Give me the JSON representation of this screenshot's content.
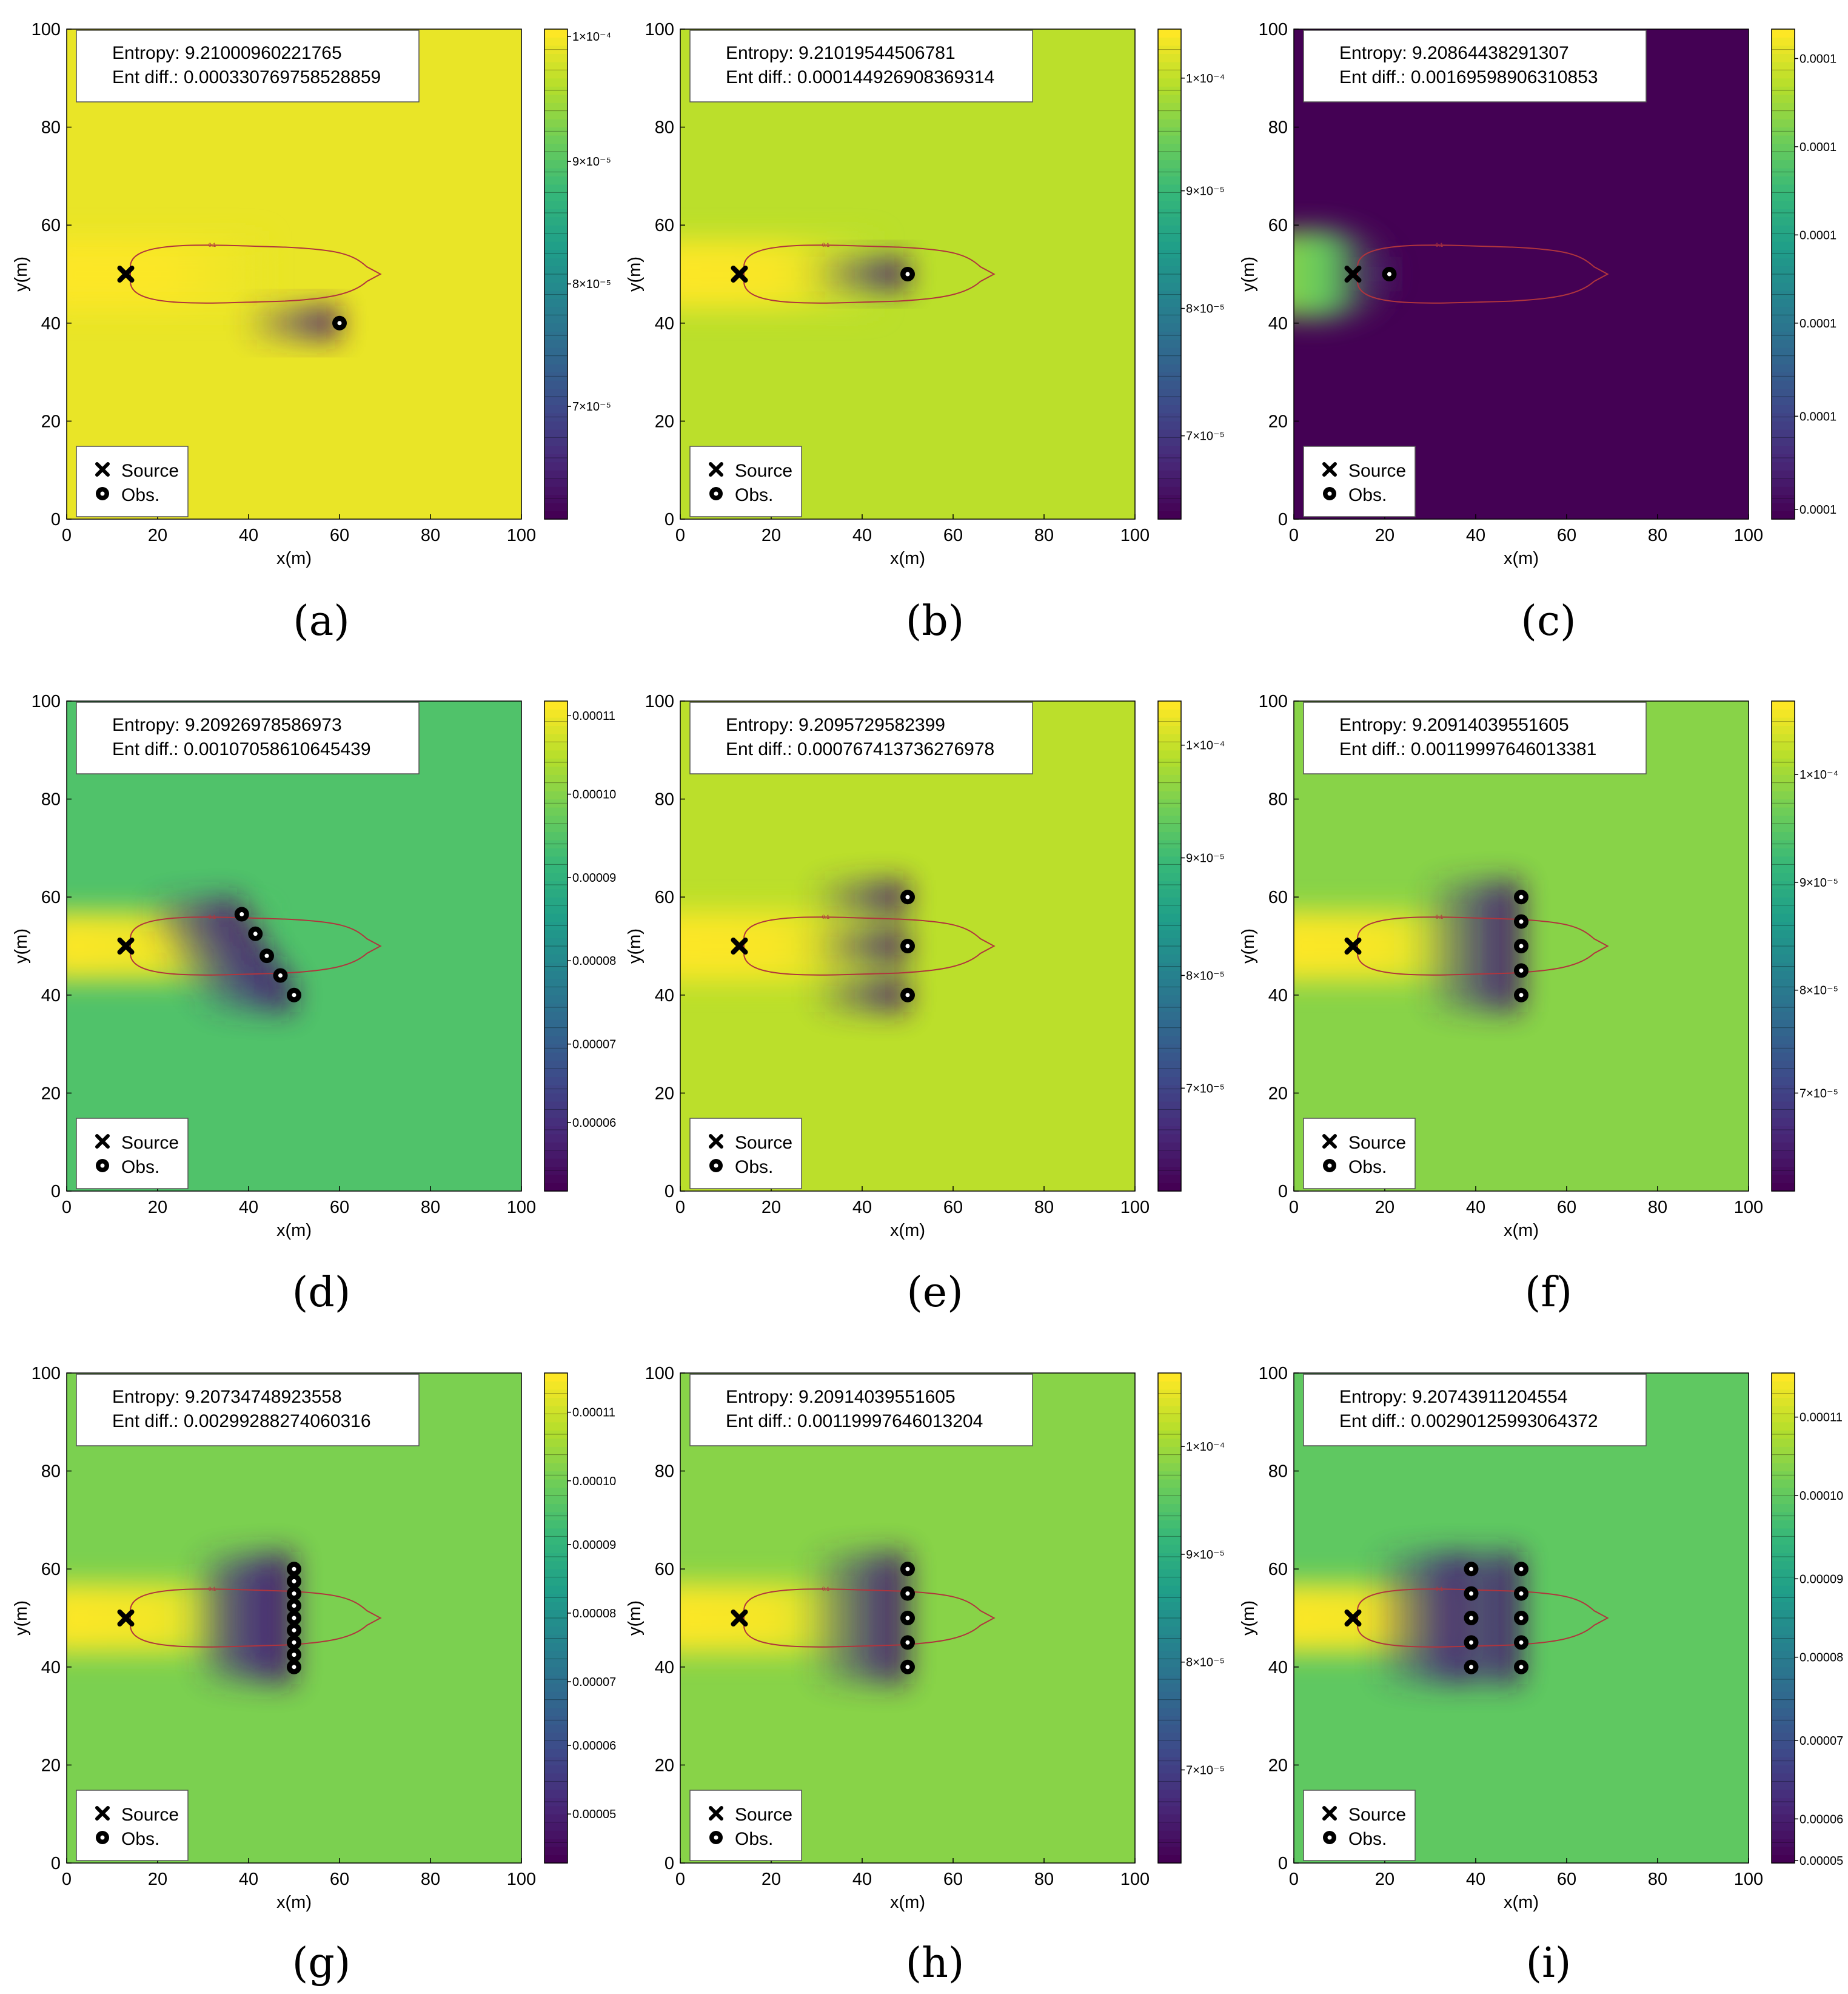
{
  "figure": {
    "captions": [
      "(a)",
      "(b)",
      "(c)",
      "(d)",
      "(e)",
      "(f)",
      "(g)",
      "(h)",
      "(i)"
    ]
  },
  "chart_data": [
    {
      "panel": "(a)",
      "type": "heatmap",
      "xlabel": "x(m)",
      "ylabel": "y(m)",
      "xlim": [
        0,
        100
      ],
      "ylim": [
        0,
        100
      ],
      "x_ticks": [
        "0",
        "20",
        "40",
        "60",
        "80",
        "100"
      ],
      "y_ticks": [
        "0",
        "20",
        "40",
        "60",
        "80",
        "100"
      ],
      "info_lines": [
        "Entropy: 9.21000960221765",
        "Ent diff.: 0.000330769758528859"
      ],
      "legend": [
        "Source",
        "Obs."
      ],
      "legend_position": "bottom-left",
      "source": [
        13,
        50
      ],
      "observations": [
        [
          60,
          40
        ]
      ],
      "background_level": 0.97,
      "source_level": 1.0,
      "contour_label": "0.1",
      "colorbar": {
        "min_level": 0.0,
        "max_level": 1.0,
        "ticks": [
          {
            "label": "1×10⁻⁴",
            "level": 0.985
          },
          {
            "label": "9×10⁻⁵",
            "level": 0.73
          },
          {
            "label": "8×10⁻⁵",
            "level": 0.48
          },
          {
            "label": "7×10⁻⁵",
            "level": 0.23
          }
        ]
      }
    },
    {
      "panel": "(b)",
      "type": "heatmap",
      "xlabel": "x(m)",
      "ylabel": "y(m)",
      "xlim": [
        0,
        100
      ],
      "ylim": [
        0,
        100
      ],
      "x_ticks": [
        "0",
        "20",
        "40",
        "60",
        "80",
        "100"
      ],
      "y_ticks": [
        "0",
        "20",
        "40",
        "60",
        "80",
        "100"
      ],
      "info_lines": [
        "Entropy: 9.21019544506781",
        "Ent diff.: 0.000144926908369314"
      ],
      "legend": [
        "Source",
        "Obs."
      ],
      "legend_position": "bottom-left",
      "source": [
        13,
        50
      ],
      "observations": [
        [
          50,
          50
        ]
      ],
      "background_level": 0.9,
      "source_level": 1.0,
      "contour_label": "0.1",
      "colorbar": {
        "min_level": 0.0,
        "max_level": 1.0,
        "ticks": [
          {
            "label": "1×10⁻⁴",
            "level": 0.9
          },
          {
            "label": "9×10⁻⁵",
            "level": 0.67
          },
          {
            "label": "8×10⁻⁵",
            "level": 0.43
          },
          {
            "label": "7×10⁻⁵",
            "level": 0.17
          }
        ]
      }
    },
    {
      "panel": "(c)",
      "type": "heatmap",
      "xlabel": "x(m)",
      "ylabel": "y(m)",
      "xlim": [
        0,
        100
      ],
      "ylim": [
        0,
        100
      ],
      "x_ticks": [
        "0",
        "20",
        "40",
        "60",
        "80",
        "100"
      ],
      "y_ticks": [
        "0",
        "20",
        "40",
        "60",
        "80",
        "100"
      ],
      "info_lines": [
        "Entropy: 9.20864438291307",
        "Ent diff.: 0.00169598906310853"
      ],
      "legend": [
        "Source",
        "Obs."
      ],
      "legend_position": "bottom-left",
      "source": [
        13,
        50
      ],
      "observations": [
        [
          21,
          50
        ]
      ],
      "background_level": 0.0,
      "source_level": 1.0,
      "inverted_plume": true,
      "contour_label": "0.1",
      "colorbar": {
        "min_level": 0.0,
        "max_level": 1.0,
        "ticks": [
          {
            "label": "0.0001",
            "level": 0.94
          },
          {
            "label": "0.0001",
            "level": 0.76
          },
          {
            "label": "0.0001",
            "level": 0.58
          },
          {
            "label": "0.0001",
            "level": 0.4
          },
          {
            "label": "0.0001",
            "level": 0.21
          },
          {
            "label": "0.0001",
            "level": 0.02
          }
        ]
      }
    },
    {
      "panel": "(d)",
      "type": "heatmap",
      "xlabel": "x(m)",
      "ylabel": "y(m)",
      "xlim": [
        0,
        100
      ],
      "ylim": [
        0,
        100
      ],
      "x_ticks": [
        "0",
        "20",
        "40",
        "60",
        "80",
        "100"
      ],
      "y_ticks": [
        "0",
        "20",
        "40",
        "60",
        "80",
        "100"
      ],
      "info_lines": [
        "Entropy: 9.20926978586973",
        "Ent diff.: 0.00107058610645439"
      ],
      "legend": [
        "Source",
        "Obs."
      ],
      "legend_position": "bottom-left",
      "source": [
        13,
        50
      ],
      "observations": [
        [
          38.5,
          56.5
        ],
        [
          41.5,
          52.5
        ],
        [
          44,
          48
        ],
        [
          47,
          44
        ],
        [
          50,
          40
        ]
      ],
      "background_level": 0.72,
      "source_level": 1.0,
      "contour_label": "0.1",
      "colorbar": {
        "min_level": 0.0,
        "max_level": 1.0,
        "ticks": [
          {
            "label": "0.00011",
            "level": 0.97
          },
          {
            "label": "0.00010",
            "level": 0.81
          },
          {
            "label": "0.00009",
            "level": 0.64
          },
          {
            "label": "0.00008",
            "level": 0.47
          },
          {
            "label": "0.00007",
            "level": 0.3
          },
          {
            "label": "0.00006",
            "level": 0.14
          }
        ]
      }
    },
    {
      "panel": "(e)",
      "type": "heatmap",
      "xlabel": "x(m)",
      "ylabel": "y(m)",
      "xlim": [
        0,
        100
      ],
      "ylim": [
        0,
        100
      ],
      "x_ticks": [
        "0",
        "20",
        "40",
        "60",
        "80",
        "100"
      ],
      "y_ticks": [
        "0",
        "20",
        "40",
        "60",
        "80",
        "100"
      ],
      "info_lines": [
        "Entropy: 9.2095729582399",
        "Ent diff.: 0.000767413736276978"
      ],
      "legend": [
        "Source",
        "Obs."
      ],
      "legend_position": "bottom-left",
      "source": [
        13,
        50
      ],
      "observations": [
        [
          50,
          60
        ],
        [
          50,
          50
        ],
        [
          50,
          40
        ]
      ],
      "background_level": 0.9,
      "source_level": 1.0,
      "contour_label": "0.1",
      "colorbar": {
        "min_level": 0.0,
        "max_level": 1.0,
        "ticks": [
          {
            "label": "1×10⁻⁴",
            "level": 0.91
          },
          {
            "label": "9×10⁻⁵",
            "level": 0.68
          },
          {
            "label": "8×10⁻⁵",
            "level": 0.44
          },
          {
            "label": "7×10⁻⁵",
            "level": 0.21
          }
        ]
      }
    },
    {
      "panel": "(f)",
      "type": "heatmap",
      "xlabel": "x(m)",
      "ylabel": "y(m)",
      "xlim": [
        0,
        100
      ],
      "ylim": [
        0,
        100
      ],
      "x_ticks": [
        "0",
        "20",
        "40",
        "60",
        "80",
        "100"
      ],
      "y_ticks": [
        "0",
        "20",
        "40",
        "60",
        "80",
        "100"
      ],
      "info_lines": [
        "Entropy: 9.20914039551605",
        "Ent diff.: 0.00119997646013381"
      ],
      "legend": [
        "Source",
        "Obs."
      ],
      "legend_position": "bottom-left",
      "source": [
        13,
        50
      ],
      "observations": [
        [
          50,
          60
        ],
        [
          50,
          55
        ],
        [
          50,
          50
        ],
        [
          50,
          45
        ],
        [
          50,
          40
        ]
      ],
      "background_level": 0.82,
      "source_level": 1.0,
      "contour_label": "0.1",
      "colorbar": {
        "min_level": 0.0,
        "max_level": 1.0,
        "ticks": [
          {
            "label": "1×10⁻⁴",
            "level": 0.85
          },
          {
            "label": "9×10⁻⁵",
            "level": 0.63
          },
          {
            "label": "8×10⁻⁵",
            "level": 0.41
          },
          {
            "label": "7×10⁻⁵",
            "level": 0.2
          }
        ]
      }
    },
    {
      "panel": "(g)",
      "type": "heatmap",
      "xlabel": "x(m)",
      "ylabel": "y(m)",
      "xlim": [
        0,
        100
      ],
      "ylim": [
        0,
        100
      ],
      "x_ticks": [
        "0",
        "20",
        "40",
        "60",
        "80",
        "100"
      ],
      "y_ticks": [
        "0",
        "20",
        "40",
        "60",
        "80",
        "100"
      ],
      "info_lines": [
        "Entropy: 9.20734748923558",
        "Ent diff.: 0.00299288274060316"
      ],
      "legend": [
        "Source",
        "Obs."
      ],
      "legend_position": "bottom-left",
      "source": [
        13,
        50
      ],
      "observations": [
        [
          50,
          60
        ],
        [
          50,
          57.5
        ],
        [
          50,
          55
        ],
        [
          50,
          52.5
        ],
        [
          50,
          50
        ],
        [
          50,
          47.5
        ],
        [
          50,
          45
        ],
        [
          50,
          42.5
        ],
        [
          50,
          40
        ]
      ],
      "background_level": 0.8,
      "source_level": 1.0,
      "contour_label": "0.1",
      "colorbar": {
        "min_level": 0.0,
        "max_level": 1.0,
        "ticks": [
          {
            "label": "0.00011",
            "level": 0.92
          },
          {
            "label": "0.00010",
            "level": 0.78
          },
          {
            "label": "0.00009",
            "level": 0.65
          },
          {
            "label": "0.00008",
            "level": 0.51
          },
          {
            "label": "0.00007",
            "level": 0.37
          },
          {
            "label": "0.00006",
            "level": 0.24
          },
          {
            "label": "0.00005",
            "level": 0.1
          }
        ]
      }
    },
    {
      "panel": "(h)",
      "type": "heatmap",
      "xlabel": "x(m)",
      "ylabel": "y(m)",
      "xlim": [
        0,
        100
      ],
      "ylim": [
        0,
        100
      ],
      "x_ticks": [
        "0",
        "20",
        "40",
        "60",
        "80",
        "100"
      ],
      "y_ticks": [
        "0",
        "20",
        "40",
        "60",
        "80",
        "100"
      ],
      "info_lines": [
        "Entropy: 9.20914039551605",
        "Ent diff.: 0.00119997646013204"
      ],
      "legend": [
        "Source",
        "Obs."
      ],
      "legend_position": "bottom-left",
      "source": [
        13,
        50
      ],
      "observations": [
        [
          50,
          60
        ],
        [
          50,
          55
        ],
        [
          50,
          50
        ],
        [
          50,
          45
        ],
        [
          50,
          40
        ]
      ],
      "background_level": 0.82,
      "source_level": 1.0,
      "contour_label": "0.1",
      "colorbar": {
        "min_level": 0.0,
        "max_level": 1.0,
        "ticks": [
          {
            "label": "1×10⁻⁴",
            "level": 0.85
          },
          {
            "label": "9×10⁻⁵",
            "level": 0.63
          },
          {
            "label": "8×10⁻⁵",
            "level": 0.41
          },
          {
            "label": "7×10⁻⁵",
            "level": 0.19
          }
        ]
      }
    },
    {
      "panel": "(i)",
      "type": "heatmap",
      "xlabel": "x(m)",
      "ylabel": "y(m)",
      "xlim": [
        0,
        100
      ],
      "ylim": [
        0,
        100
      ],
      "x_ticks": [
        "0",
        "20",
        "40",
        "60",
        "80",
        "100"
      ],
      "y_ticks": [
        "0",
        "20",
        "40",
        "60",
        "80",
        "100"
      ],
      "info_lines": [
        "Entropy: 9.20743911204554",
        "Ent diff.: 0.00290125993064372"
      ],
      "legend": [
        "Source",
        "Obs."
      ],
      "legend_position": "bottom-left",
      "source": [
        13,
        50
      ],
      "observations": [
        [
          39,
          60
        ],
        [
          39,
          55
        ],
        [
          39,
          50
        ],
        [
          39,
          45
        ],
        [
          39,
          40
        ],
        [
          50,
          60
        ],
        [
          50,
          55
        ],
        [
          50,
          50
        ],
        [
          50,
          45
        ],
        [
          50,
          40
        ]
      ],
      "background_level": 0.75,
      "source_level": 1.0,
      "contour_label": "0.1",
      "colorbar": {
        "min_level": 0.0,
        "max_level": 1.0,
        "ticks": [
          {
            "label": "0.00011",
            "level": 0.91
          },
          {
            "label": "0.00010",
            "level": 0.75
          },
          {
            "label": "0.00009",
            "level": 0.58
          },
          {
            "label": "0.00008",
            "level": 0.42
          },
          {
            "label": "0.00007",
            "level": 0.25
          },
          {
            "label": "0.00006",
            "level": 0.09
          },
          {
            "label": "0.00005",
            "level": -0.02
          }
        ]
      }
    }
  ]
}
